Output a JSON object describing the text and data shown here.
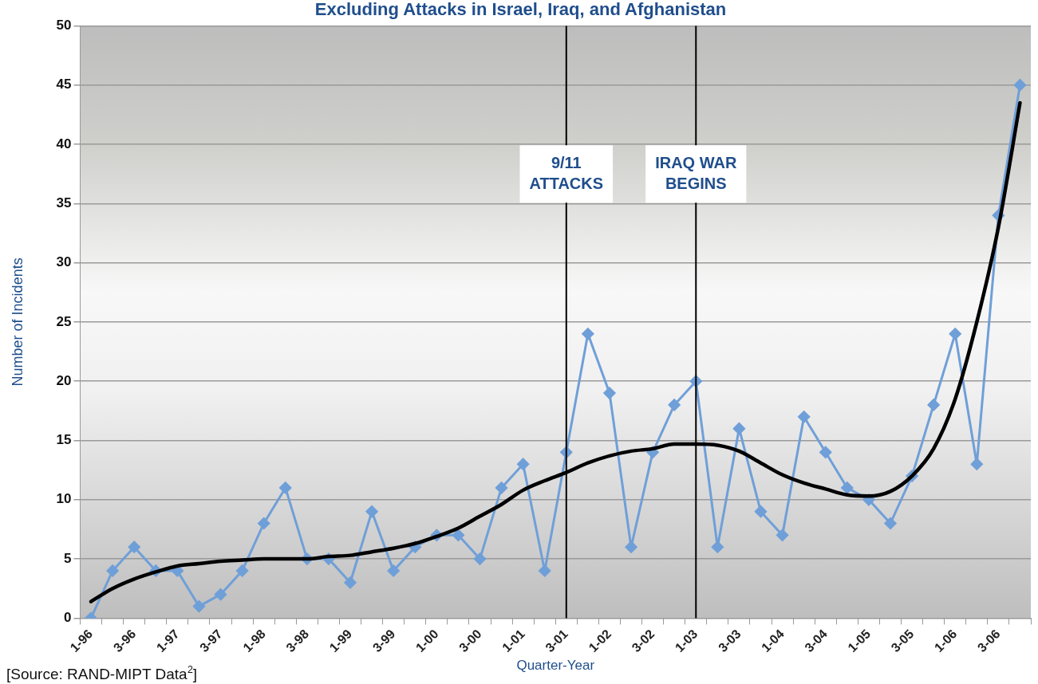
{
  "chart_data": {
    "type": "line",
    "title": "Excluding Attacks in Israel, Iraq, and Afghanistan",
    "xlabel": "Quarter-Year",
    "ylabel": "Number of Incidents",
    "categories": [
      "1-96",
      null,
      "3-96",
      null,
      "1-97",
      null,
      "3-97",
      null,
      "1-98",
      null,
      "3-98",
      null,
      "1-99",
      null,
      "3-99",
      null,
      "1-00",
      null,
      "3-00",
      null,
      "1-01",
      null,
      "3-01",
      null,
      "1-02",
      null,
      "3-02",
      null,
      "1-03",
      null,
      "3-03",
      null,
      "1-04",
      null,
      "3-04",
      null,
      "1-05",
      null,
      "3-05",
      null,
      "1-06",
      null,
      "3-06",
      null
    ],
    "series": [
      {
        "color": "#6f9fd8",
        "marker": "diamond",
        "values": [
          0,
          4,
          6,
          4,
          4,
          1,
          2,
          4,
          8,
          11,
          5,
          5,
          3,
          9,
          4,
          6,
          7,
          7,
          5,
          11,
          13,
          4,
          14,
          24,
          19,
          6,
          14,
          18,
          20,
          6,
          16,
          9,
          7,
          17,
          14,
          11,
          10,
          8,
          12,
          18,
          24,
          13,
          34,
          45
        ]
      },
      {
        "color": "#000000",
        "marker": "none",
        "values": [
          1.4,
          2.5,
          3.3,
          3.9,
          4.4,
          4.6,
          4.8,
          4.9,
          5.0,
          5.0,
          5.0,
          5.2,
          5.3,
          5.6,
          5.9,
          6.3,
          6.9,
          7.6,
          8.6,
          9.6,
          10.8,
          11.6,
          12.3,
          13.1,
          13.7,
          14.1,
          14.3,
          14.7,
          14.7,
          14.6,
          14.1,
          13.1,
          12.1,
          11.4,
          10.9,
          10.4,
          10.3,
          10.7,
          12.0,
          14.3,
          18.5,
          25,
          33,
          43.5
        ]
      }
    ],
    "ylim": [
      0,
      50
    ],
    "yticks": [
      0,
      5,
      10,
      15,
      20,
      25,
      30,
      35,
      40,
      45,
      50
    ],
    "grid": "y",
    "legend": false,
    "ref_lines": [
      {
        "axis": "x",
        "value": "3-01",
        "label": "9/11\nATTACKS",
        "color": "#000000"
      },
      {
        "axis": "x",
        "value": "1-03",
        "label": "IRAQ WAR\nBEGINS",
        "color": "#000000"
      }
    ],
    "annotations": [
      "[Source: RAND-MIPT Data$^{2}$]"
    ]
  }
}
